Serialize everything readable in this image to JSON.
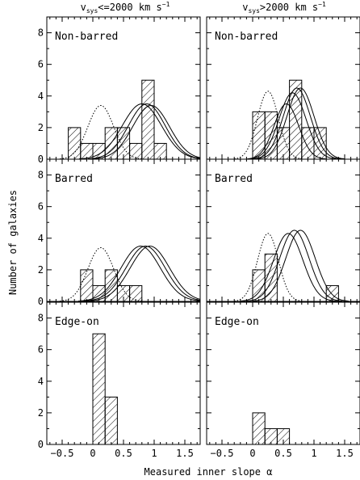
{
  "figure": {
    "ylabel": "Number of galaxies",
    "xlabel": "Measured inner slope α",
    "x_ticks": [
      -0.5,
      0.0,
      0.5,
      1.0,
      1.5
    ],
    "x_tick_labels": [
      "−0.5",
      "0",
      "0.5",
      "1",
      "1.5"
    ],
    "columns": [
      {
        "title_v": "v",
        "title_sub": "sys",
        "title_rest": "<=2000 km s",
        "title_sup": "−1"
      },
      {
        "title_v": "v",
        "title_sub": "sys",
        "title_rest": ">2000 km s",
        "title_sup": "−1"
      }
    ]
  },
  "chart_data": [
    {
      "type": "bar",
      "row": 0,
      "col": 0,
      "label": "Non-barred",
      "xlim": [
        -0.75,
        1.75
      ],
      "ylim": [
        0,
        9
      ],
      "y_ticks": [
        0,
        2,
        4,
        6,
        8
      ],
      "y_tick_labels": [
        "0",
        "2",
        "4",
        "6",
        "8"
      ],
      "bin_width": 0.2,
      "bins": [
        {
          "x0": -0.4,
          "value": 2
        },
        {
          "x0": -0.2,
          "value": 1
        },
        {
          "x0": 0.0,
          "value": 1
        },
        {
          "x0": 0.2,
          "value": 2
        },
        {
          "x0": 0.4,
          "value": 2
        },
        {
          "x0": 0.6,
          "value": 1
        },
        {
          "x0": 0.8,
          "value": 5
        },
        {
          "x0": 1.0,
          "value": 1
        }
      ],
      "model_curves": [
        {
          "style": "dotted",
          "mean": 0.13,
          "amplitude": 3.4,
          "sigma": 0.21
        },
        {
          "style": "solid",
          "mean": 0.8,
          "amplitude": 3.5,
          "sigma": 0.32
        },
        {
          "style": "solid",
          "mean": 0.88,
          "amplitude": 3.5,
          "sigma": 0.3
        },
        {
          "style": "solid",
          "mean": 0.95,
          "amplitude": 3.4,
          "sigma": 0.3
        }
      ]
    },
    {
      "type": "bar",
      "row": 0,
      "col": 1,
      "label": "Non-barred",
      "xlim": [
        -0.75,
        1.75
      ],
      "ylim": [
        0,
        9
      ],
      "y_ticks": [
        0,
        2,
        4,
        6,
        8
      ],
      "y_tick_labels": [
        "",
        "",
        "",
        "",
        ""
      ],
      "bin_width": 0.2,
      "bins": [
        {
          "x0": 0.0,
          "value": 3
        },
        {
          "x0": 0.2,
          "value": 3
        },
        {
          "x0": 0.4,
          "value": 2
        },
        {
          "x0": 0.6,
          "value": 5
        },
        {
          "x0": 0.8,
          "value": 2
        },
        {
          "x0": 1.0,
          "value": 2
        }
      ],
      "model_curves": [
        {
          "style": "dotted",
          "mean": 0.25,
          "amplitude": 4.3,
          "sigma": 0.17
        },
        {
          "style": "solid",
          "mean": 0.55,
          "amplitude": 3.5,
          "sigma": 0.2
        },
        {
          "style": "solid",
          "mean": 0.65,
          "amplitude": 4.2,
          "sigma": 0.22
        },
        {
          "style": "solid",
          "mean": 0.72,
          "amplitude": 4.5,
          "sigma": 0.22
        },
        {
          "style": "solid",
          "mean": 0.78,
          "amplitude": 4.5,
          "sigma": 0.22
        }
      ]
    },
    {
      "type": "bar",
      "row": 1,
      "col": 0,
      "label": "Barred",
      "xlim": [
        -0.75,
        1.75
      ],
      "ylim": [
        0,
        9
      ],
      "y_ticks": [
        0,
        2,
        4,
        6,
        8
      ],
      "y_tick_labels": [
        "0",
        "2",
        "4",
        "6",
        "8"
      ],
      "bin_width": 0.2,
      "bins": [
        {
          "x0": -0.2,
          "value": 2
        },
        {
          "x0": 0.0,
          "value": 1
        },
        {
          "x0": 0.2,
          "value": 2
        },
        {
          "x0": 0.4,
          "value": 1
        },
        {
          "x0": 0.6,
          "value": 1
        }
      ],
      "model_curves": [
        {
          "style": "dotted",
          "mean": 0.13,
          "amplitude": 3.4,
          "sigma": 0.21
        },
        {
          "style": "solid",
          "mean": 0.78,
          "amplitude": 3.5,
          "sigma": 0.32
        },
        {
          "style": "solid",
          "mean": 0.86,
          "amplitude": 3.5,
          "sigma": 0.32
        },
        {
          "style": "solid",
          "mean": 0.93,
          "amplitude": 3.5,
          "sigma": 0.32
        }
      ]
    },
    {
      "type": "bar",
      "row": 1,
      "col": 1,
      "label": "Barred",
      "xlim": [
        -0.75,
        1.75
      ],
      "ylim": [
        0,
        9
      ],
      "y_ticks": [
        0,
        2,
        4,
        6,
        8
      ],
      "y_tick_labels": [
        "",
        "",
        "",
        "",
        ""
      ],
      "bin_width": 0.2,
      "bins": [
        {
          "x0": 0.0,
          "value": 2
        },
        {
          "x0": 0.2,
          "value": 3
        },
        {
          "x0": 1.2,
          "value": 1
        }
      ],
      "model_curves": [
        {
          "style": "dotted",
          "mean": 0.25,
          "amplitude": 4.3,
          "sigma": 0.17
        },
        {
          "style": "solid",
          "mean": 0.58,
          "amplitude": 4.3,
          "sigma": 0.24
        },
        {
          "style": "solid",
          "mean": 0.68,
          "amplitude": 4.5,
          "sigma": 0.24
        },
        {
          "style": "solid",
          "mean": 0.78,
          "amplitude": 4.5,
          "sigma": 0.24
        }
      ]
    },
    {
      "type": "bar",
      "row": 2,
      "col": 0,
      "label": "Edge-on",
      "xlim": [
        -0.75,
        1.75
      ],
      "ylim": [
        0,
        9
      ],
      "y_ticks": [
        0,
        2,
        4,
        6,
        8
      ],
      "y_tick_labels": [
        "0",
        "2",
        "4",
        "6",
        "8"
      ],
      "bin_width": 0.2,
      "bins": [
        {
          "x0": 0.0,
          "value": 7
        },
        {
          "x0": 0.2,
          "value": 3
        }
      ],
      "model_curves": []
    },
    {
      "type": "bar",
      "row": 2,
      "col": 1,
      "label": "Edge-on",
      "xlim": [
        -0.75,
        1.75
      ],
      "ylim": [
        0,
        9
      ],
      "y_ticks": [
        0,
        2,
        4,
        6,
        8
      ],
      "y_tick_labels": [
        "",
        "",
        "",
        "",
        ""
      ],
      "bin_width": 0.2,
      "bins": [
        {
          "x0": 0.0,
          "value": 2
        },
        {
          "x0": 0.2,
          "value": 1
        },
        {
          "x0": 0.4,
          "value": 1
        }
      ],
      "model_curves": []
    }
  ]
}
